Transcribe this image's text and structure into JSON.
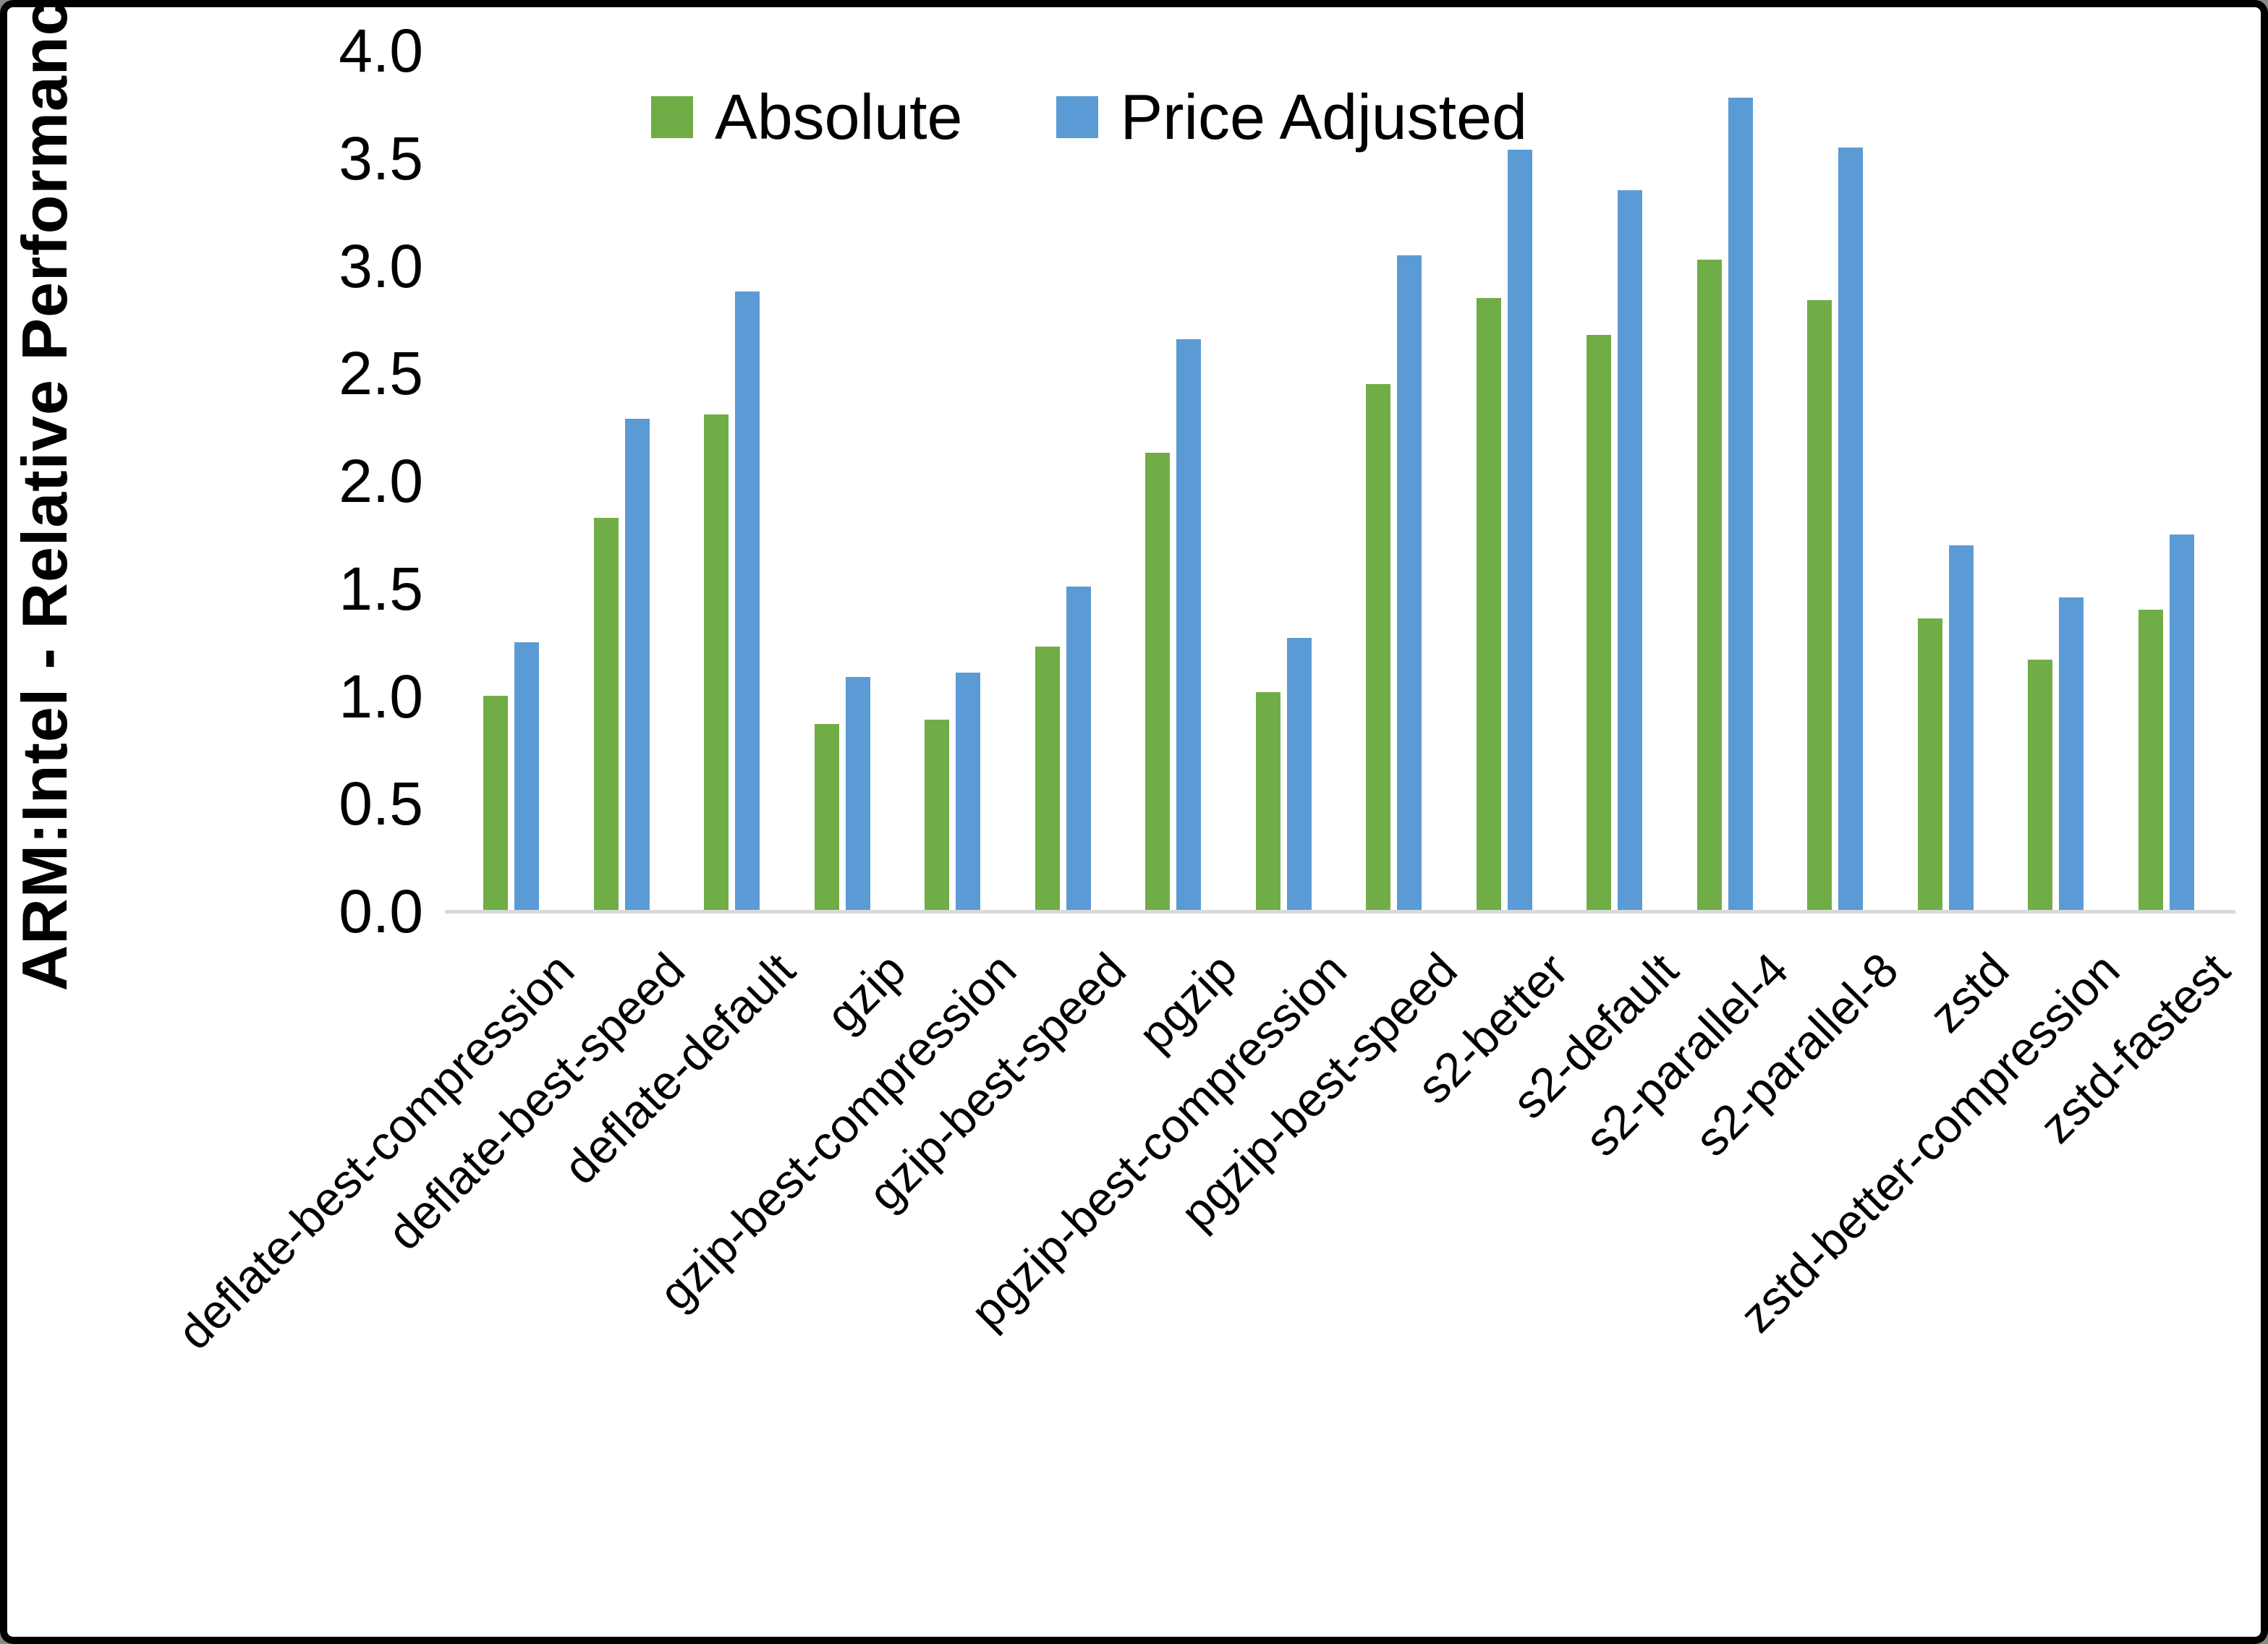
{
  "chart_data": {
    "type": "bar",
    "title": "",
    "xlabel": "",
    "ylabel": "ARM:Intel - Relative Performance",
    "ylim": [
      0.0,
      4.0
    ],
    "ytick_step": 0.5,
    "ytick_labels": [
      "0.0",
      "0.5",
      "1.0",
      "1.5",
      "2.0",
      "2.5",
      "3.0",
      "3.5",
      "4.0"
    ],
    "grid": false,
    "legend_position": "top-center",
    "categories": [
      "deflate-best-compression",
      "deflate-best-speed",
      "deflate-default",
      "gzip",
      "gzip-best-compression",
      "gzip-best-speed",
      "pgzip",
      "pgzip-best-compression",
      "pgzip-best-speed",
      "s2-better",
      "s2-default",
      "s2-parallel-4",
      "s2-parallel-8",
      "zstd",
      "zstd-better-compression",
      "zstd-fastest"
    ],
    "series": [
      {
        "name": "Absolute",
        "color": "#70AD47",
        "values": [
          1.0,
          1.83,
          2.31,
          0.87,
          0.89,
          1.23,
          2.13,
          1.02,
          2.45,
          2.85,
          2.68,
          3.03,
          2.84,
          1.36,
          1.17,
          1.4
        ]
      },
      {
        "name": "Price Adjusted",
        "color": "#5B9BD5",
        "values": [
          1.25,
          2.29,
          2.88,
          1.09,
          1.11,
          1.51,
          2.66,
          1.27,
          3.05,
          3.54,
          3.35,
          3.78,
          3.55,
          1.7,
          1.46,
          1.75
        ]
      }
    ]
  },
  "colors": {
    "background": "#FFFFFF",
    "frame_border": "#000000",
    "axis_line": "#D9D9D9",
    "text": "#000000"
  }
}
